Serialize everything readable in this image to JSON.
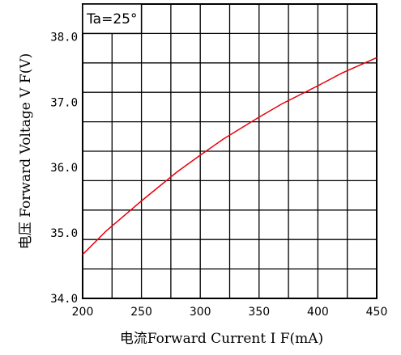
{
  "chart_data": {
    "type": "line",
    "annotation": "Ta=25°",
    "xlabel": "电流Forward Current I F(mA)",
    "ylabel": "电压 Forward Voltage V F(V)",
    "xlim": [
      200,
      450
    ],
    "ylim": [
      34.0,
      38.5
    ],
    "x_ticks": [
      "200",
      "250",
      "300",
      "350",
      "400",
      "450"
    ],
    "y_ticks": [
      "34.0",
      "35.0",
      "36.0",
      "37.0",
      "38.0"
    ],
    "grid": true,
    "series": [
      {
        "color": "#e8000b",
        "x": [
          200,
          220,
          250,
          280,
          300,
          320,
          350,
          370,
          400,
          420,
          450
        ],
        "y": [
          34.67,
          35.03,
          35.49,
          35.93,
          36.19,
          36.44,
          36.77,
          36.98,
          37.25,
          37.44,
          37.68
        ]
      }
    ]
  }
}
